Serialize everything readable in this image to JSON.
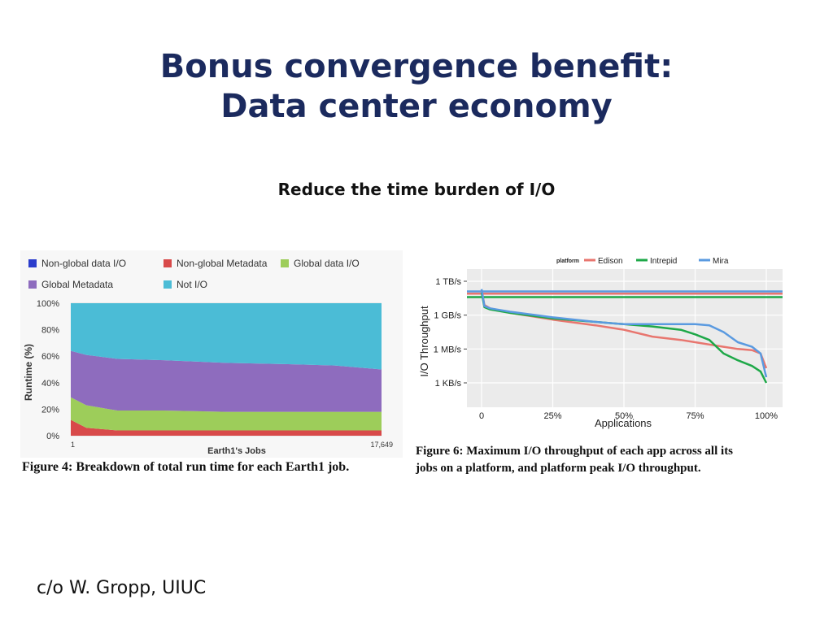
{
  "slide": {
    "title_line1": "Bonus convergence benefit:",
    "title_line2": "Data center economy",
    "subtitle": "Reduce the time burden of I/O",
    "credit": "c/o W. Gropp, UIUC"
  },
  "colors": {
    "title": "#1b2a5e",
    "non_global_data_io": "#2b3dcc",
    "non_global_metadata": "#d84a4a",
    "global_data_io": "#9dcd5a",
    "global_metadata": "#8e6cbe",
    "not_io": "#4bbcd6",
    "edison": "#e8766f",
    "intrepid": "#1ea848",
    "mira": "#5a9ae0"
  },
  "figure4": {
    "caption": "Figure 4: Breakdown of total run time for each Earth1 job."
  },
  "figure6": {
    "caption_line1": "Figure 6: Maximum I/O throughput of each app across all its",
    "caption_line2": "jobs on a platform, and platform peak I/O throughput."
  },
  "chart_data": [
    {
      "type": "area",
      "stacked": true,
      "ylabel": "Runtime (%)",
      "xlabel": "Earth1's Jobs",
      "x_tick_labels": [
        "1",
        "17,649"
      ],
      "y_tick_labels": [
        "0%",
        "20%",
        "40%",
        "60%",
        "80%",
        "100%"
      ],
      "ylim": [
        0,
        100
      ],
      "legend_position": "top",
      "x": [
        0,
        0.05,
        0.15,
        0.3,
        0.5,
        0.7,
        0.85,
        1.0
      ],
      "series": [
        {
          "name": "Non-global data I/O",
          "values": [
            0,
            0,
            0,
            0,
            0,
            0,
            0,
            0
          ]
        },
        {
          "name": "Non-global Metadata",
          "values": [
            12,
            6,
            4,
            4,
            4,
            4,
            4,
            4
          ]
        },
        {
          "name": "Global data I/O",
          "values": [
            17,
            17,
            15,
            15,
            14,
            14,
            14,
            14
          ]
        },
        {
          "name": "Global Metadata",
          "values": [
            35,
            38,
            39,
            38,
            37,
            36,
            35,
            32
          ]
        },
        {
          "name": "Not I/O",
          "values": [
            36,
            39,
            42,
            43,
            45,
            46,
            47,
            50
          ]
        }
      ]
    },
    {
      "type": "line",
      "ylabel": "I/O Throughput",
      "xlabel": "Applications",
      "legend_title": "platform",
      "legend_position": "top",
      "x_tick_labels": [
        "0",
        "25%",
        "50%",
        "75%",
        "100%"
      ],
      "y_tick_labels": [
        "1 KB/s",
        "1 MB/s",
        "1 GB/s",
        "1 TB/s"
      ],
      "y_scale": "log",
      "y_tick_values_log10": [
        3,
        6,
        9,
        12
      ],
      "x": [
        0,
        1,
        3,
        10,
        25,
        40,
        50,
        60,
        70,
        75,
        80,
        85,
        90,
        95,
        98,
        100
      ],
      "series": [
        {
          "name": "Edison",
          "peak_log10": 10.9,
          "values_log10": [
            11.2,
            9.9,
            9.6,
            9.2,
            8.6,
            8.1,
            7.7,
            7.1,
            6.8,
            6.6,
            6.4,
            6.2,
            6.0,
            5.9,
            5.6,
            4.3
          ]
        },
        {
          "name": "Intrepid",
          "peak_log10": 10.6,
          "values_log10": [
            11.0,
            9.7,
            9.5,
            9.2,
            8.7,
            8.4,
            8.2,
            8.0,
            7.7,
            7.3,
            6.8,
            5.6,
            5.0,
            4.5,
            4.0,
            3.0
          ]
        },
        {
          "name": "Mira",
          "peak_log10": 11.1,
          "values_log10": [
            11.3,
            9.8,
            9.6,
            9.3,
            8.8,
            8.4,
            8.2,
            8.2,
            8.2,
            8.2,
            8.1,
            7.5,
            6.6,
            6.2,
            5.6,
            3.5
          ]
        }
      ]
    }
  ]
}
